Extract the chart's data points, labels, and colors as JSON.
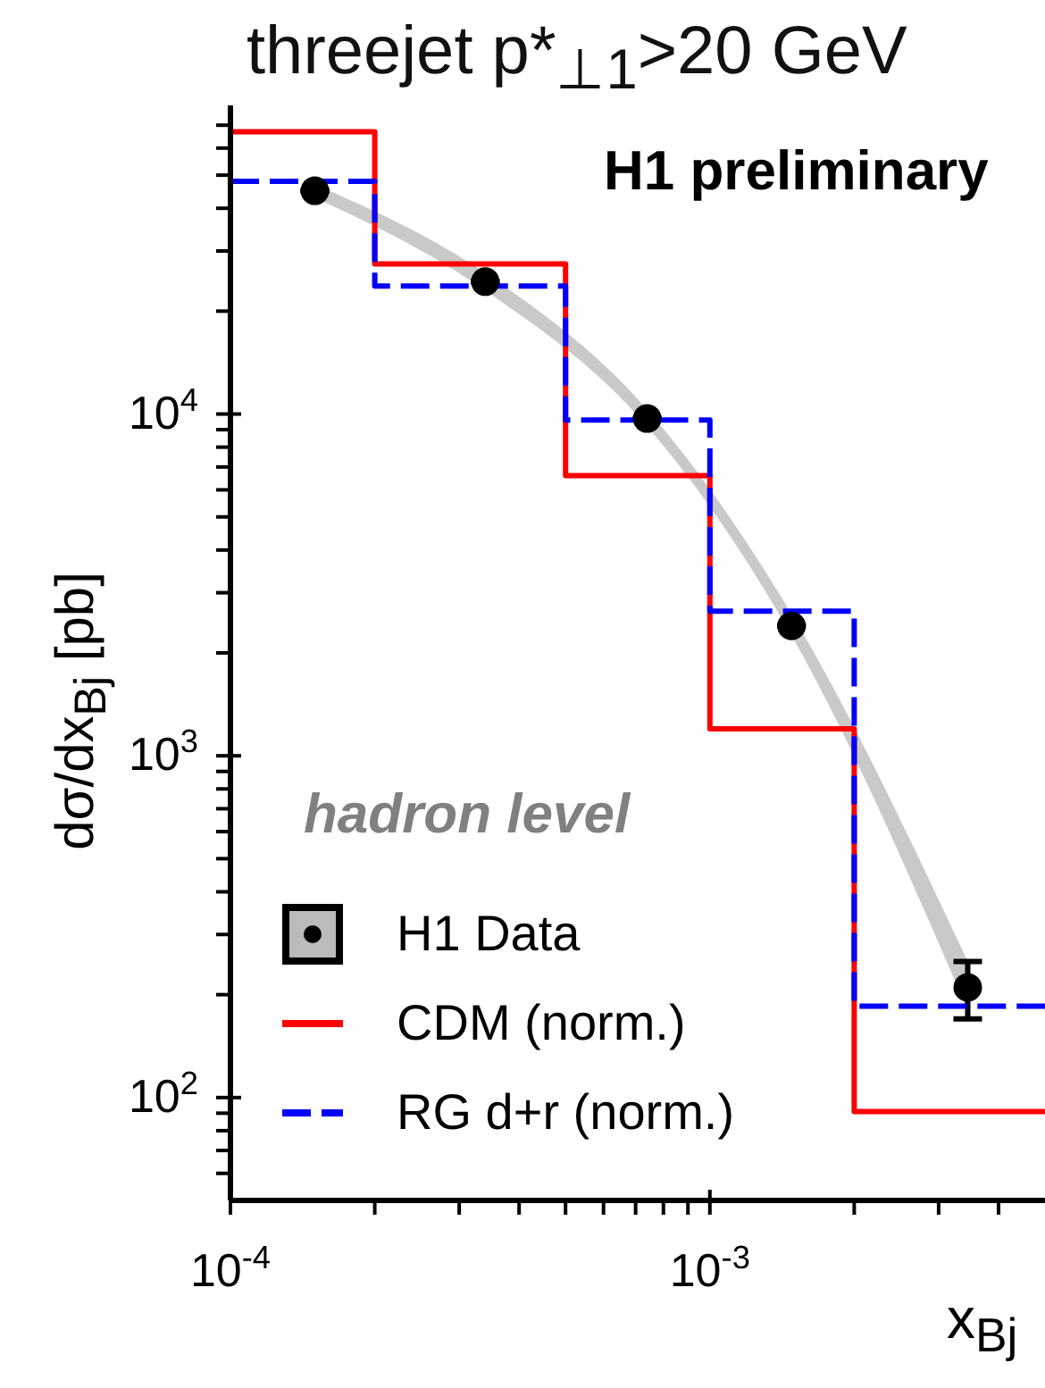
{
  "chart_data": {
    "type": "histogram",
    "bins": [
      0.0001,
      0.0002,
      0.0005,
      0.001,
      0.002,
      0.005
    ],
    "title": "threejet p*$_{⊥1}$>20 GeV",
    "xlabel": "x$_{Bj}$",
    "ylabel": "dσ/dx$_{Bj}$ [pb]",
    "log": "xy",
    "xlim": [
      0.0001,
      0.005
    ],
    "ylim": [
      50,
      80000
    ],
    "xticks": [
      {
        "value": 0.0001,
        "label": "10$^{-4}$"
      },
      {
        "value": 0.0002,
        "label": null
      },
      {
        "value": 0.0003,
        "label": null
      },
      {
        "value": 0.0004,
        "label": null
      },
      {
        "value": 0.0005,
        "label": null
      },
      {
        "value": 0.0006,
        "label": null
      },
      {
        "value": 0.0007,
        "label": null
      },
      {
        "value": 0.0008,
        "label": null
      },
      {
        "value": 0.0009,
        "label": null
      },
      {
        "value": 0.001,
        "label": "10$^{-3}$"
      },
      {
        "value": 0.002,
        "label": null
      },
      {
        "value": 0.003,
        "label": null
      },
      {
        "value": 0.004,
        "label": null
      }
    ],
    "yticks": [
      {
        "value": 60,
        "label": null
      },
      {
        "value": 70,
        "label": null
      },
      {
        "value": 80,
        "label": null
      },
      {
        "value": 90,
        "label": null
      },
      {
        "value": 100,
        "label": "10$^{2}$"
      },
      {
        "value": 200,
        "label": null
      },
      {
        "value": 300,
        "label": null
      },
      {
        "value": 400,
        "label": null
      },
      {
        "value": 500,
        "label": null
      },
      {
        "value": 600,
        "label": null
      },
      {
        "value": 700,
        "label": null
      },
      {
        "value": 800,
        "label": null
      },
      {
        "value": 900,
        "label": null
      },
      {
        "value": 1000,
        "label": "10$^{3}$"
      },
      {
        "value": 2000,
        "label": null
      },
      {
        "value": 3000,
        "label": null
      },
      {
        "value": 4000,
        "label": null
      },
      {
        "value": 5000,
        "label": null
      },
      {
        "value": 6000,
        "label": null
      },
      {
        "value": 7000,
        "label": null
      },
      {
        "value": 8000,
        "label": null
      },
      {
        "value": 9000,
        "label": null
      },
      {
        "value": 10000,
        "label": "10$^{4}$"
      },
      {
        "value": 20000,
        "label": null
      },
      {
        "value": 30000,
        "label": null
      },
      {
        "value": 40000,
        "label": null
      },
      {
        "value": 50000,
        "label": null
      },
      {
        "value": 60000,
        "label": null
      },
      {
        "value": 70000,
        "label": null
      }
    ],
    "legend": "bottom left",
    "annotations": [
      "H1 preliminary",
      "hadron level"
    ],
    "series": [
      {
        "name": "H1 Data",
        "type": "scatter",
        "marker": "circle",
        "color": "#000000",
        "x": [
          0.00015,
          0.00034,
          0.00074,
          0.00148,
          0.00345
        ],
        "values": [
          45000,
          24400,
          9700,
          2400,
          210
        ],
        "errors": [
          null,
          null,
          null,
          null,
          [
            170,
            250
          ]
        ],
        "lower": [
          43000,
          23000,
          9200,
          2250,
          180
        ],
        "upper": [
          47000,
          25800,
          10300,
          2600,
          250
        ]
      },
      {
        "name": "CDM (norm.)",
        "line_style": "solid",
        "color": "#ff0000",
        "values": [
          67000,
          27500,
          6600,
          1200,
          91
        ]
      },
      {
        "name": "RG d+r (norm.)",
        "line_style": "dashed",
        "color": "#0000ff",
        "values": [
          48000,
          23700,
          9600,
          2650,
          185
        ]
      }
    ]
  }
}
